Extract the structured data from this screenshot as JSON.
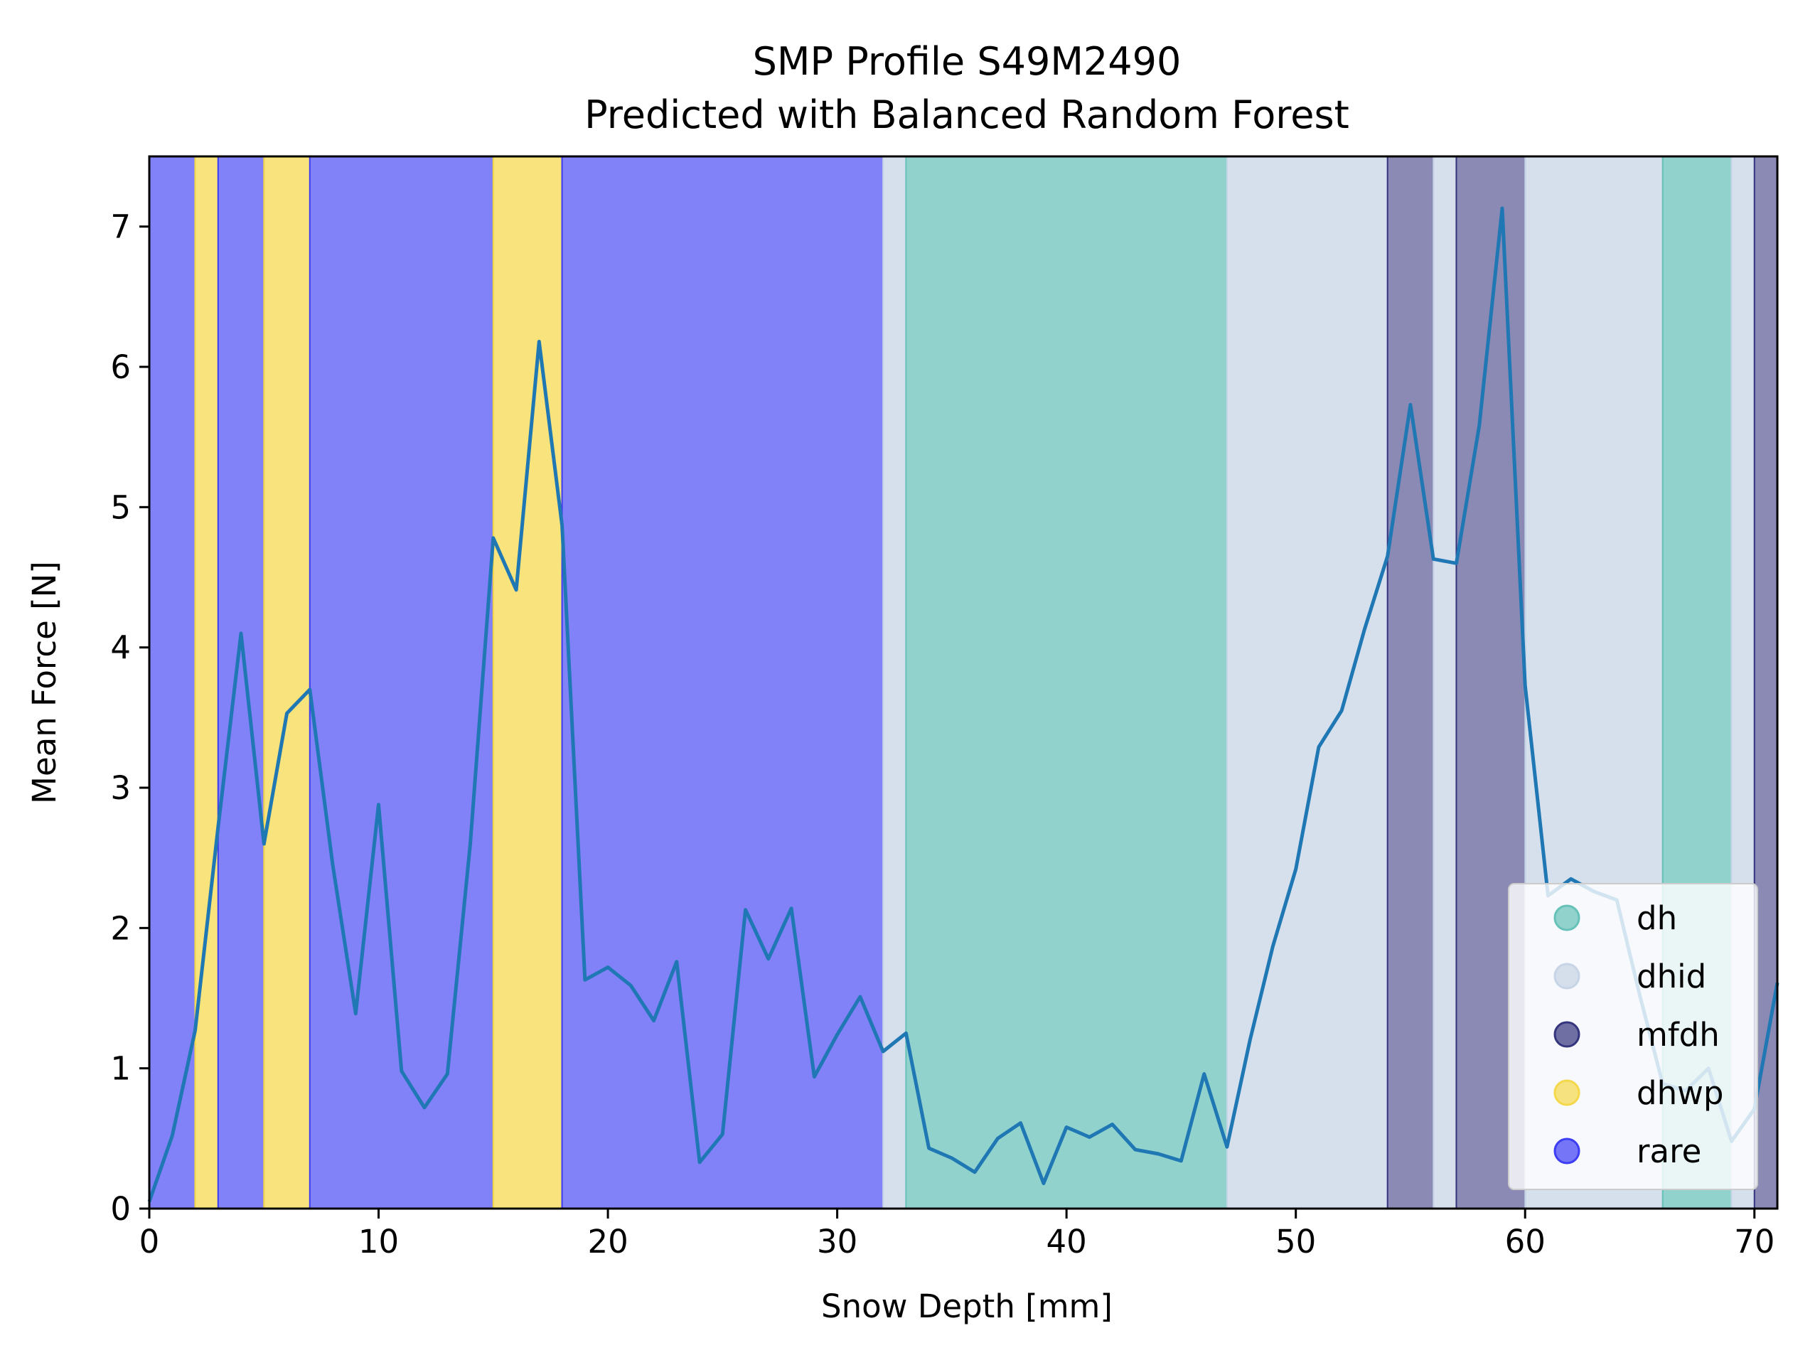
{
  "chart_data": {
    "type": "line",
    "title": "SMP Profile S49M2490",
    "subtitle": "Predicted with Balanced Random Forest",
    "xlabel": "Snow Depth [mm]",
    "ylabel": "Mean Force [N]",
    "xlim": [
      0,
      71
    ],
    "ylim": [
      0,
      7.5
    ],
    "xticks": [
      0,
      10,
      20,
      30,
      40,
      50,
      60,
      70
    ],
    "yticks": [
      0,
      1,
      2,
      3,
      4,
      5,
      6,
      7
    ],
    "grid": false,
    "legend_position": "lower-right",
    "legend": [
      {
        "label": "dh",
        "color": "#66c2b8"
      },
      {
        "label": "dhid",
        "color": "#c6d4e6"
      },
      {
        "label": "mfdh",
        "color": "#35357e"
      },
      {
        "label": "dhwp",
        "color": "#f5d84a"
      },
      {
        "label": "rare",
        "color": "#3d3df5"
      }
    ],
    "segments": [
      {
        "start": 0,
        "end": 2,
        "class": "rare"
      },
      {
        "start": 2,
        "end": 3,
        "class": "dhwp"
      },
      {
        "start": 3,
        "end": 5,
        "class": "rare"
      },
      {
        "start": 5,
        "end": 7,
        "class": "dhwp"
      },
      {
        "start": 7,
        "end": 15,
        "class": "rare"
      },
      {
        "start": 15,
        "end": 18,
        "class": "dhwp"
      },
      {
        "start": 18,
        "end": 32,
        "class": "rare"
      },
      {
        "start": 32,
        "end": 33,
        "class": "dhid"
      },
      {
        "start": 33,
        "end": 47,
        "class": "dh"
      },
      {
        "start": 47,
        "end": 54,
        "class": "dhid"
      },
      {
        "start": 54,
        "end": 56,
        "class": "mfdh"
      },
      {
        "start": 56,
        "end": 57,
        "class": "dhid"
      },
      {
        "start": 57,
        "end": 60,
        "class": "mfdh"
      },
      {
        "start": 60,
        "end": 66,
        "class": "dhid"
      },
      {
        "start": 66,
        "end": 69,
        "class": "dh"
      },
      {
        "start": 69,
        "end": 70,
        "class": "dhid"
      },
      {
        "start": 70,
        "end": 71,
        "class": "mfdh"
      }
    ],
    "series": [
      {
        "color": "#1f77b4",
        "x": [
          0,
          1,
          2,
          3,
          4,
          5,
          6,
          7,
          8,
          9,
          10,
          11,
          12,
          13,
          14,
          15,
          16,
          17,
          18,
          19,
          20,
          21,
          22,
          23,
          24,
          25,
          26,
          27,
          28,
          29,
          30,
          31,
          32,
          33,
          34,
          35,
          36,
          37,
          38,
          39,
          40,
          41,
          42,
          43,
          44,
          45,
          46,
          47,
          48,
          49,
          50,
          51,
          52,
          53,
          54,
          55,
          56,
          57,
          58,
          59,
          60,
          61,
          62,
          63,
          64,
          65,
          66,
          67,
          68,
          69,
          70,
          71
        ],
        "values": [
          0.05,
          0.52,
          1.27,
          2.72,
          4.1,
          2.6,
          3.53,
          3.7,
          2.45,
          1.39,
          2.88,
          0.98,
          0.72,
          0.96,
          2.6,
          4.78,
          4.41,
          6.18,
          4.87,
          1.63,
          1.72,
          1.59,
          1.34,
          1.76,
          0.33,
          0.53,
          2.13,
          1.78,
          2.14,
          0.94,
          1.24,
          1.51,
          1.12,
          1.25,
          0.43,
          0.36,
          0.26,
          0.5,
          0.61,
          0.18,
          0.58,
          0.51,
          0.6,
          0.42,
          0.39,
          0.34,
          0.96,
          0.44,
          1.2,
          1.87,
          2.42,
          3.29,
          3.55,
          4.13,
          4.65,
          5.73,
          4.63,
          4.6,
          5.58,
          7.13,
          3.73,
          2.23,
          2.35,
          2.26,
          2.2,
          1.52,
          0.89,
          0.84,
          1.0,
          0.48,
          0.71,
          1.61
        ]
      }
    ]
  }
}
